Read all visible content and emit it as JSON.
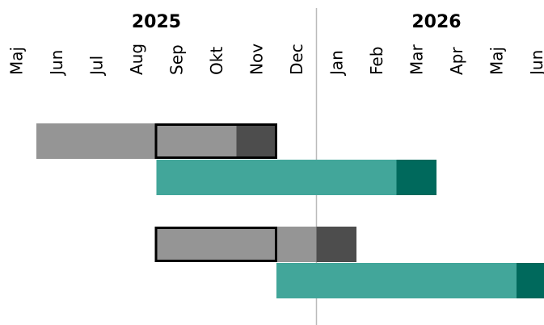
{
  "chart_data": {
    "type": "timeline",
    "categories": [
      "Maj",
      "Jun",
      "Jul",
      "Aug",
      "Sep",
      "Okt",
      "Nov",
      "Dec",
      "Jan",
      "Feb",
      "Mar",
      "Apr",
      "Maj",
      "Jun"
    ],
    "years": [
      {
        "label": "2025",
        "start": 0,
        "end": 8
      },
      {
        "label": "2026",
        "start": 8,
        "end": 14
      }
    ],
    "rows": [
      {
        "segments": [
          {
            "start": 1,
            "end": 6,
            "color": "#959595"
          },
          {
            "start": 6,
            "end": 7,
            "color": "#4d4d4d"
          }
        ],
        "outline": {
          "start": 4,
          "end": 7
        }
      },
      {
        "segments": [
          {
            "start": 4,
            "end": 10,
            "color": "#42a69a"
          },
          {
            "start": 10,
            "end": 11,
            "color": "#00695c"
          }
        ]
      },
      {
        "segments": [
          {
            "start": 4,
            "end": 8,
            "color": "#959595"
          },
          {
            "start": 8,
            "end": 9,
            "color": "#4d4d4d"
          }
        ],
        "outline": {
          "start": 4,
          "end": 7
        }
      },
      {
        "segments": [
          {
            "start": 7,
            "end": 13,
            "color": "#42a69a"
          },
          {
            "start": 13,
            "end": 14,
            "color": "#00695c"
          }
        ]
      }
    ]
  }
}
